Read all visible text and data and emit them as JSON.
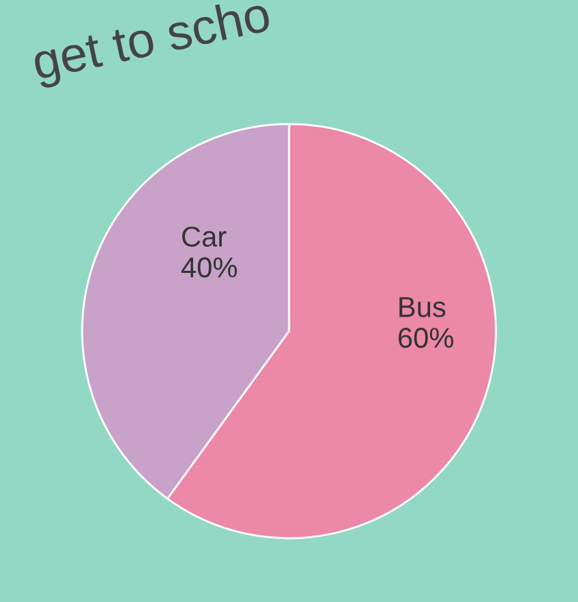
{
  "chart_data": {
    "type": "pie",
    "title": "get to scho",
    "categories": [
      "Bus",
      "Car"
    ],
    "values": [
      60,
      40
    ],
    "colors": [
      "#ec88a8",
      "#c8a2c8"
    ],
    "value_labels": [
      "60%",
      "40%"
    ]
  }
}
